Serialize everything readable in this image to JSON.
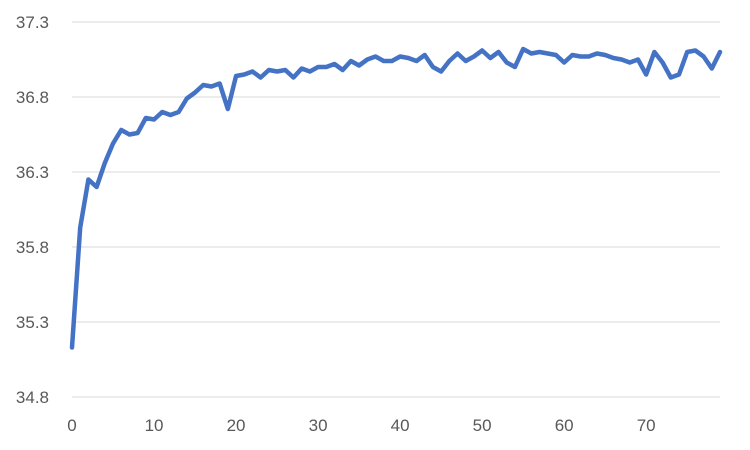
{
  "chart_data": {
    "type": "line",
    "title": "",
    "xlabel": "",
    "ylabel": "",
    "xlim": [
      0,
      79
    ],
    "ylim": [
      34.8,
      37.3
    ],
    "x_ticks": [
      0,
      10,
      20,
      30,
      40,
      50,
      60,
      70
    ],
    "y_ticks": [
      34.8,
      35.3,
      35.8,
      36.3,
      36.8,
      37.3
    ],
    "x_tick_labels": [
      "0",
      "10",
      "20",
      "30",
      "40",
      "50",
      "60",
      "70"
    ],
    "y_tick_labels": [
      "34.8",
      "35.3",
      "35.8",
      "36.3",
      "36.8",
      "37.3"
    ],
    "grid": "horizontal",
    "legend": "none",
    "colors": {
      "series": "#4472c4",
      "grid": "#d9d9d9",
      "tick_text": "#595959"
    },
    "series": [
      {
        "x": [
          0,
          1,
          2,
          3,
          4,
          5,
          6,
          7,
          8,
          9,
          10,
          11,
          12,
          13,
          14,
          15,
          16,
          17,
          18,
          19,
          20,
          21,
          22,
          23,
          24,
          25,
          26,
          27,
          28,
          29,
          30,
          31,
          32,
          33,
          34,
          35,
          36,
          37,
          38,
          39,
          40,
          41,
          42,
          43,
          44,
          45,
          46,
          47,
          48,
          49,
          50,
          51,
          52,
          53,
          54,
          55,
          56,
          57,
          58,
          59,
          60,
          61,
          62,
          63,
          64,
          65,
          66,
          67,
          68,
          69,
          70,
          71,
          72,
          73,
          74,
          75,
          76,
          77,
          78,
          79
        ],
        "values": [
          35.13,
          35.93,
          36.25,
          36.2,
          36.36,
          36.49,
          36.58,
          36.55,
          36.56,
          36.66,
          36.65,
          36.7,
          36.68,
          36.7,
          36.79,
          36.83,
          36.88,
          36.87,
          36.89,
          36.72,
          36.94,
          36.95,
          36.97,
          36.93,
          36.98,
          36.97,
          36.98,
          36.93,
          36.99,
          36.97,
          37.0,
          37.0,
          37.02,
          36.98,
          37.04,
          37.01,
          37.05,
          37.07,
          37.04,
          37.04,
          37.07,
          37.06,
          37.04,
          37.08,
          37.0,
          36.97,
          37.04,
          37.09,
          37.04,
          37.07,
          37.11,
          37.06,
          37.1,
          37.03,
          37.0,
          37.12,
          37.09,
          37.1,
          37.09,
          37.08,
          37.03,
          37.08,
          37.07,
          37.07,
          37.09,
          37.08,
          37.06,
          37.05,
          37.03,
          37.05,
          36.95,
          37.1,
          37.03,
          36.93,
          36.95,
          37.1,
          37.11,
          37.07,
          36.99,
          37.1
        ]
      }
    ]
  }
}
